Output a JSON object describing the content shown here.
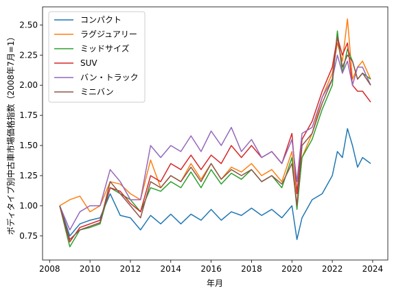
{
  "chart_data": {
    "type": "line",
    "xlabel": "年月",
    "ylabel": "ボディタイプ別中古車市場価格指数（2008年7月=1）",
    "xlim": [
      2007.65,
      2024.75
    ],
    "ylim": [
      0.55,
      2.65
    ],
    "xticks": [
      2008,
      2010,
      2012,
      2014,
      2016,
      2018,
      2020,
      2022,
      2024
    ],
    "yticks": [
      0.75,
      1.0,
      1.25,
      1.5,
      1.75,
      2.0,
      2.25,
      2.5
    ],
    "ytick_labels": [
      "0.75",
      "1.00",
      "1.25",
      "1.50",
      "1.75",
      "2.00",
      "2.25",
      "2.50"
    ],
    "grid": false,
    "legend_position": "upper-left",
    "x": [
      2008.5,
      2009.0,
      2009.5,
      2010.0,
      2010.5,
      2011.0,
      2011.5,
      2012.0,
      2012.5,
      2013.0,
      2013.5,
      2014.0,
      2014.5,
      2015.0,
      2015.5,
      2016.0,
      2016.5,
      2017.0,
      2017.5,
      2018.0,
      2018.5,
      2019.0,
      2019.5,
      2020.0,
      2020.25,
      2020.5,
      2021.0,
      2021.5,
      2022.0,
      2022.25,
      2022.5,
      2022.75,
      2023.0,
      2023.25,
      2023.5,
      2023.9
    ],
    "series": [
      {
        "name": "コンパクト",
        "color": "#1f77b4",
        "values": [
          1.0,
          0.75,
          0.85,
          0.88,
          0.9,
          1.1,
          0.92,
          0.9,
          0.8,
          0.92,
          0.85,
          0.93,
          0.85,
          0.93,
          0.88,
          0.97,
          0.88,
          0.95,
          0.92,
          0.98,
          0.92,
          0.97,
          0.9,
          1.0,
          0.72,
          0.9,
          1.05,
          1.1,
          1.25,
          1.45,
          1.4,
          1.64,
          1.5,
          1.32,
          1.4,
          1.35
        ]
      },
      {
        "name": "ラグジュアリー",
        "color": "#ff7f0e",
        "values": [
          1.0,
          1.05,
          1.08,
          0.95,
          1.0,
          1.2,
          1.18,
          1.1,
          1.05,
          1.38,
          1.15,
          1.25,
          1.2,
          1.35,
          1.22,
          1.35,
          1.22,
          1.32,
          1.28,
          1.35,
          1.25,
          1.3,
          1.2,
          1.45,
          1.0,
          1.4,
          1.6,
          1.9,
          2.1,
          2.35,
          2.2,
          2.55,
          2.05,
          2.15,
          2.2,
          2.05
        ]
      },
      {
        "name": "ミッドサイズ",
        "color": "#2ca02c",
        "values": [
          1.0,
          0.66,
          0.8,
          0.82,
          0.85,
          1.15,
          1.1,
          1.05,
          0.95,
          1.15,
          1.12,
          1.2,
          1.15,
          1.28,
          1.15,
          1.3,
          1.18,
          1.27,
          1.22,
          1.3,
          1.2,
          1.25,
          1.15,
          1.4,
          0.97,
          1.4,
          1.55,
          1.8,
          2.0,
          2.45,
          2.1,
          2.3,
          2.2,
          2.05,
          2.1,
          2.05
        ]
      },
      {
        "name": "SUV",
        "color": "#d62728",
        "values": [
          1.0,
          0.7,
          0.82,
          0.85,
          0.88,
          1.15,
          1.12,
          1.02,
          0.95,
          1.25,
          1.2,
          1.35,
          1.3,
          1.42,
          1.3,
          1.42,
          1.35,
          1.5,
          1.4,
          1.5,
          1.4,
          1.45,
          1.35,
          1.6,
          1.1,
          1.55,
          1.7,
          1.95,
          2.15,
          2.4,
          2.25,
          2.35,
          2.0,
          1.95,
          1.95,
          1.86
        ]
      },
      {
        "name": "バン・トラック",
        "color": "#9467bd",
        "values": [
          1.0,
          0.8,
          0.95,
          1.0,
          1.0,
          1.3,
          1.2,
          1.05,
          1.05,
          1.5,
          1.4,
          1.5,
          1.45,
          1.58,
          1.45,
          1.62,
          1.5,
          1.65,
          1.45,
          1.55,
          1.4,
          1.45,
          1.35,
          1.55,
          1.2,
          1.6,
          1.65,
          1.9,
          2.05,
          2.25,
          2.1,
          2.2,
          2.0,
          2.15,
          2.15,
          2.0
        ]
      },
      {
        "name": "ミニバン",
        "color": "#8c564b",
        "values": [
          1.0,
          0.72,
          0.8,
          0.83,
          0.86,
          1.2,
          1.1,
          1.0,
          0.9,
          1.2,
          1.15,
          1.25,
          1.2,
          1.32,
          1.2,
          1.35,
          1.22,
          1.3,
          1.25,
          1.3,
          1.2,
          1.25,
          1.18,
          1.35,
          1.0,
          1.5,
          1.6,
          1.85,
          2.05,
          2.4,
          2.15,
          2.25,
          2.2,
          2.05,
          2.1,
          2.0
        ]
      }
    ]
  }
}
